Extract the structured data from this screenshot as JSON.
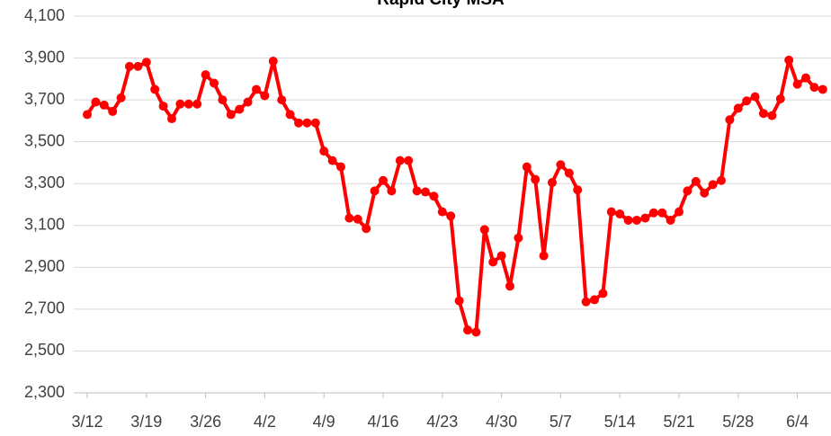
{
  "chart_data": {
    "type": "line",
    "title": "Rapid City MSA",
    "categories": [
      "3/12",
      null,
      null,
      null,
      null,
      null,
      null,
      "3/19",
      null,
      null,
      null,
      null,
      null,
      null,
      "3/26",
      null,
      null,
      null,
      null,
      null,
      null,
      "4/2",
      null,
      null,
      null,
      null,
      null,
      null,
      "4/9",
      null,
      null,
      null,
      null,
      null,
      null,
      "4/16",
      null,
      null,
      null,
      null,
      null,
      null,
      "4/23",
      null,
      null,
      null,
      null,
      null,
      null,
      "4/30",
      null,
      null,
      null,
      null,
      null,
      null,
      "5/7",
      null,
      null,
      null,
      null,
      null,
      null,
      "5/14",
      null,
      null,
      null,
      null,
      null,
      null,
      "5/21",
      null,
      null,
      null,
      null,
      null,
      null,
      "5/28",
      null,
      null,
      null,
      null,
      null,
      null,
      "6/4",
      null,
      null,
      null
    ],
    "values": [
      3630,
      3690,
      3675,
      3645,
      3710,
      3860,
      3860,
      3880,
      3750,
      3670,
      3610,
      3680,
      3680,
      3680,
      3820,
      3780,
      3700,
      3630,
      3655,
      3690,
      3750,
      3720,
      3885,
      3700,
      3630,
      3590,
      3590,
      3590,
      3455,
      3410,
      3380,
      3135,
      3130,
      3085,
      3265,
      3315,
      3265,
      3410,
      3410,
      3265,
      3260,
      3240,
      3165,
      3145,
      2740,
      2600,
      2590,
      3080,
      2925,
      2955,
      2810,
      3040,
      3380,
      3320,
      2955,
      3305,
      3390,
      3350,
      3270,
      2735,
      2745,
      2775,
      3165,
      3155,
      3125,
      3125,
      3135,
      3160,
      3160,
      3125,
      3165,
      3265,
      3310,
      3255,
      3295,
      3315,
      3605,
      3660,
      3695,
      3715,
      3635,
      3625,
      3705,
      3890,
      3775,
      3805,
      3760,
      3750
    ],
    "color": "#ff0000",
    "ylim": [
      2300,
      4100
    ],
    "yticks": [
      {
        "value": 2300,
        "label": "2,300"
      },
      {
        "value": 2500,
        "label": "2,500"
      },
      {
        "value": 2700,
        "label": "2,700"
      },
      {
        "value": 2900,
        "label": "2,900"
      },
      {
        "value": 3100,
        "label": "3,100"
      },
      {
        "value": 3300,
        "label": "3,300"
      },
      {
        "value": 3500,
        "label": "3,500"
      },
      {
        "value": 3700,
        "label": "3,700"
      },
      {
        "value": 3900,
        "label": "3,900"
      },
      {
        "value": 4100,
        "label": "4,100"
      }
    ],
    "grid": true
  }
}
